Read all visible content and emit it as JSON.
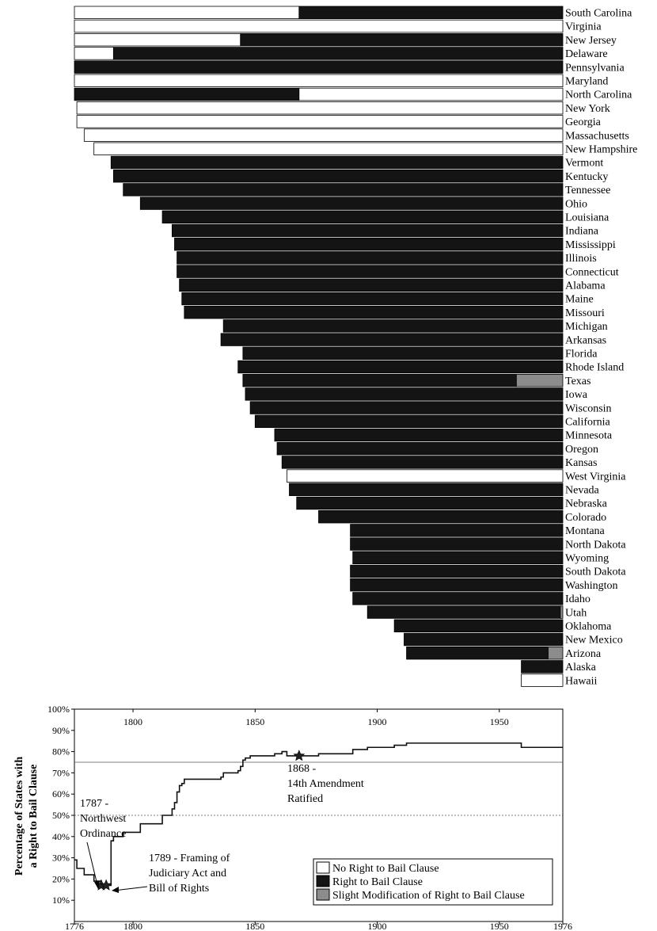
{
  "colors": {
    "no_clause": "#ffffff",
    "clause": "#141414",
    "modified": "#8c8c8c",
    "line": "#111111"
  },
  "chart_data": [
    {
      "type": "bar",
      "orientation": "horizontal-timeline",
      "xlim": [
        1776,
        1976
      ],
      "bars": [
        {
          "state": "South Carolina",
          "segments": [
            {
              "start": 1776,
              "end": 1868,
              "status": "none"
            },
            {
              "start": 1868,
              "end": 1976,
              "status": "clause"
            }
          ]
        },
        {
          "state": "Virginia",
          "segments": [
            {
              "start": 1776,
              "end": 1976,
              "status": "none"
            }
          ]
        },
        {
          "state": "New Jersey",
          "segments": [
            {
              "start": 1776,
              "end": 1844,
              "status": "none"
            },
            {
              "start": 1844,
              "end": 1976,
              "status": "clause"
            }
          ]
        },
        {
          "state": "Delaware",
          "segments": [
            {
              "start": 1776,
              "end": 1792,
              "status": "none"
            },
            {
              "start": 1792,
              "end": 1976,
              "status": "clause"
            }
          ]
        },
        {
          "state": "Pennsylvania",
          "segments": [
            {
              "start": 1776,
              "end": 1976,
              "status": "clause"
            }
          ]
        },
        {
          "state": "Maryland",
          "segments": [
            {
              "start": 1776,
              "end": 1976,
              "status": "none"
            }
          ]
        },
        {
          "state": "North Carolina",
          "segments": [
            {
              "start": 1776,
              "end": 1868,
              "status": "clause"
            },
            {
              "start": 1868,
              "end": 1976,
              "status": "none"
            }
          ]
        },
        {
          "state": "New York",
          "segments": [
            {
              "start": 1777,
              "end": 1976,
              "status": "none"
            }
          ]
        },
        {
          "state": "Georgia",
          "segments": [
            {
              "start": 1777,
              "end": 1976,
              "status": "none"
            }
          ]
        },
        {
          "state": "Massachusetts",
          "segments": [
            {
              "start": 1780,
              "end": 1976,
              "status": "none"
            }
          ]
        },
        {
          "state": "New Hampshire",
          "segments": [
            {
              "start": 1784,
              "end": 1976,
              "status": "none"
            }
          ]
        },
        {
          "state": "Vermont",
          "segments": [
            {
              "start": 1791,
              "end": 1976,
              "status": "clause"
            }
          ]
        },
        {
          "state": "Kentucky",
          "segments": [
            {
              "start": 1792,
              "end": 1976,
              "status": "clause"
            }
          ]
        },
        {
          "state": "Tennessee",
          "segments": [
            {
              "start": 1796,
              "end": 1976,
              "status": "clause"
            }
          ]
        },
        {
          "state": "Ohio",
          "segments": [
            {
              "start": 1803,
              "end": 1976,
              "status": "clause"
            }
          ]
        },
        {
          "state": "Louisiana",
          "segments": [
            {
              "start": 1812,
              "end": 1976,
              "status": "clause"
            }
          ]
        },
        {
          "state": "Indiana",
          "segments": [
            {
              "start": 1816,
              "end": 1976,
              "status": "clause"
            }
          ]
        },
        {
          "state": "Mississippi",
          "segments": [
            {
              "start": 1817,
              "end": 1976,
              "status": "clause"
            }
          ]
        },
        {
          "state": "Illinois",
          "segments": [
            {
              "start": 1818,
              "end": 1976,
              "status": "clause"
            }
          ]
        },
        {
          "state": "Connecticut",
          "segments": [
            {
              "start": 1818,
              "end": 1976,
              "status": "clause"
            }
          ]
        },
        {
          "state": "Alabama",
          "segments": [
            {
              "start": 1819,
              "end": 1976,
              "status": "clause"
            }
          ]
        },
        {
          "state": "Maine",
          "segments": [
            {
              "start": 1820,
              "end": 1976,
              "status": "clause"
            }
          ]
        },
        {
          "state": "Missouri",
          "segments": [
            {
              "start": 1821,
              "end": 1976,
              "status": "clause"
            }
          ]
        },
        {
          "state": "Michigan",
          "segments": [
            {
              "start": 1837,
              "end": 1976,
              "status": "clause"
            }
          ]
        },
        {
          "state": "Arkansas",
          "segments": [
            {
              "start": 1836,
              "end": 1976,
              "status": "clause"
            }
          ]
        },
        {
          "state": "Florida",
          "segments": [
            {
              "start": 1845,
              "end": 1976,
              "status": "clause"
            }
          ]
        },
        {
          "state": "Rhode Island",
          "segments": [
            {
              "start": 1843,
              "end": 1976,
              "status": "clause"
            }
          ]
        },
        {
          "state": "Texas",
          "segments": [
            {
              "start": 1845,
              "end": 1957,
              "status": "clause"
            },
            {
              "start": 1957,
              "end": 1976,
              "status": "modified"
            }
          ]
        },
        {
          "state": "Iowa",
          "segments": [
            {
              "start": 1846,
              "end": 1976,
              "status": "clause"
            }
          ]
        },
        {
          "state": "Wisconsin",
          "segments": [
            {
              "start": 1848,
              "end": 1976,
              "status": "clause"
            }
          ]
        },
        {
          "state": "California",
          "segments": [
            {
              "start": 1850,
              "end": 1976,
              "status": "clause"
            }
          ]
        },
        {
          "state": "Minnesota",
          "segments": [
            {
              "start": 1858,
              "end": 1976,
              "status": "clause"
            }
          ]
        },
        {
          "state": "Oregon",
          "segments": [
            {
              "start": 1859,
              "end": 1976,
              "status": "clause"
            }
          ]
        },
        {
          "state": "Kansas",
          "segments": [
            {
              "start": 1861,
              "end": 1976,
              "status": "clause"
            }
          ]
        },
        {
          "state": "West Virginia",
          "segments": [
            {
              "start": 1863,
              "end": 1976,
              "status": "none"
            }
          ]
        },
        {
          "state": "Nevada",
          "segments": [
            {
              "start": 1864,
              "end": 1976,
              "status": "clause"
            }
          ]
        },
        {
          "state": "Nebraska",
          "segments": [
            {
              "start": 1867,
              "end": 1976,
              "status": "clause"
            }
          ]
        },
        {
          "state": "Colorado",
          "segments": [
            {
              "start": 1876,
              "end": 1976,
              "status": "clause"
            }
          ]
        },
        {
          "state": "Montana",
          "segments": [
            {
              "start": 1889,
              "end": 1976,
              "status": "clause"
            }
          ]
        },
        {
          "state": "North Dakota",
          "segments": [
            {
              "start": 1889,
              "end": 1976,
              "status": "clause"
            }
          ]
        },
        {
          "state": "Wyoming",
          "segments": [
            {
              "start": 1890,
              "end": 1976,
              "status": "clause"
            }
          ]
        },
        {
          "state": "South Dakota",
          "segments": [
            {
              "start": 1889,
              "end": 1976,
              "status": "clause"
            }
          ]
        },
        {
          "state": "Washington",
          "segments": [
            {
              "start": 1889,
              "end": 1976,
              "status": "clause"
            }
          ]
        },
        {
          "state": "Idaho",
          "segments": [
            {
              "start": 1890,
              "end": 1976,
              "status": "clause"
            }
          ]
        },
        {
          "state": "Utah",
          "segments": [
            {
              "start": 1896,
              "end": 1975,
              "status": "clause"
            },
            {
              "start": 1975,
              "end": 1976,
              "status": "modified"
            }
          ]
        },
        {
          "state": "Oklahoma",
          "segments": [
            {
              "start": 1907,
              "end": 1976,
              "status": "clause"
            }
          ]
        },
        {
          "state": "New Mexico",
          "segments": [
            {
              "start": 1911,
              "end": 1976,
              "status": "clause"
            }
          ]
        },
        {
          "state": "Arizona",
          "segments": [
            {
              "start": 1912,
              "end": 1970,
              "status": "clause"
            },
            {
              "start": 1970,
              "end": 1976,
              "status": "modified"
            }
          ]
        },
        {
          "state": "Alaska",
          "segments": [
            {
              "start": 1959,
              "end": 1976,
              "status": "clause"
            }
          ]
        },
        {
          "state": "Hawaii",
          "segments": [
            {
              "start": 1959,
              "end": 1976,
              "status": "none"
            }
          ]
        }
      ]
    },
    {
      "type": "line",
      "xlim": [
        1776,
        1976
      ],
      "ylim": [
        0,
        100
      ],
      "ylabel": "Percentage of States with a Right to Bail Clause",
      "x_ticks": [
        1776,
        1800,
        1850,
        1900,
        1950,
        1976
      ],
      "x_ticks_top": [
        1800,
        1850,
        1900,
        1950
      ],
      "y_ticks": [
        "100%",
        "90%",
        "80%",
        "70%",
        "60%",
        "50%",
        "40%",
        "30%",
        "20%",
        "10%"
      ],
      "y_tick_values": [
        100,
        90,
        80,
        70,
        60,
        50,
        40,
        30,
        20,
        10
      ],
      "reference_lines": [
        75,
        50
      ],
      "x": [
        1776,
        1777,
        1780,
        1784,
        1787,
        1789,
        1791,
        1792,
        1796,
        1803,
        1812,
        1816,
        1817,
        1818,
        1819,
        1820,
        1821,
        1836,
        1837,
        1843,
        1844,
        1845,
        1846,
        1848,
        1850,
        1858,
        1859,
        1861,
        1863,
        1864,
        1867,
        1868,
        1876,
        1889,
        1890,
        1896,
        1907,
        1911,
        1912,
        1959,
        1976
      ],
      "y": [
        29,
        25,
        22,
        19,
        17,
        17,
        38,
        40,
        42,
        46,
        50,
        53,
        56,
        61,
        64,
        65,
        67,
        68,
        70,
        71,
        73,
        76,
        77,
        78,
        78,
        79,
        79,
        80,
        78,
        78,
        78,
        78,
        79,
        79,
        81,
        82,
        83,
        83,
        84,
        82,
        82
      ],
      "markers": [
        {
          "x": 1787,
          "y": 17,
          "label": "1787 - Northwest Ordinance"
        },
        {
          "x": 1789,
          "y": 17,
          "label": "1789 - Framing of Judiciary Act and Bill of Rights"
        },
        {
          "x": 1868,
          "y": 78,
          "label": "1868 - 14th Amendment Ratified"
        }
      ]
    }
  ],
  "annotations": {
    "northwest": [
      "1787 -",
      "Northwest",
      "Ordinance"
    ],
    "judiciary": [
      "1789 - Framing of",
      "Judiciary Act and",
      "Bill of Rights"
    ],
    "amendment": [
      "1868 -",
      "14th Amendment",
      "Ratified"
    ]
  },
  "legend": {
    "none": "No Right to Bail Clause",
    "clause": "Right to Bail Clause",
    "modified": "Slight Modification of Right to Bail Clause"
  },
  "ylabel_lines": [
    "Percentage of States with",
    "a Right to Bail Clause"
  ]
}
